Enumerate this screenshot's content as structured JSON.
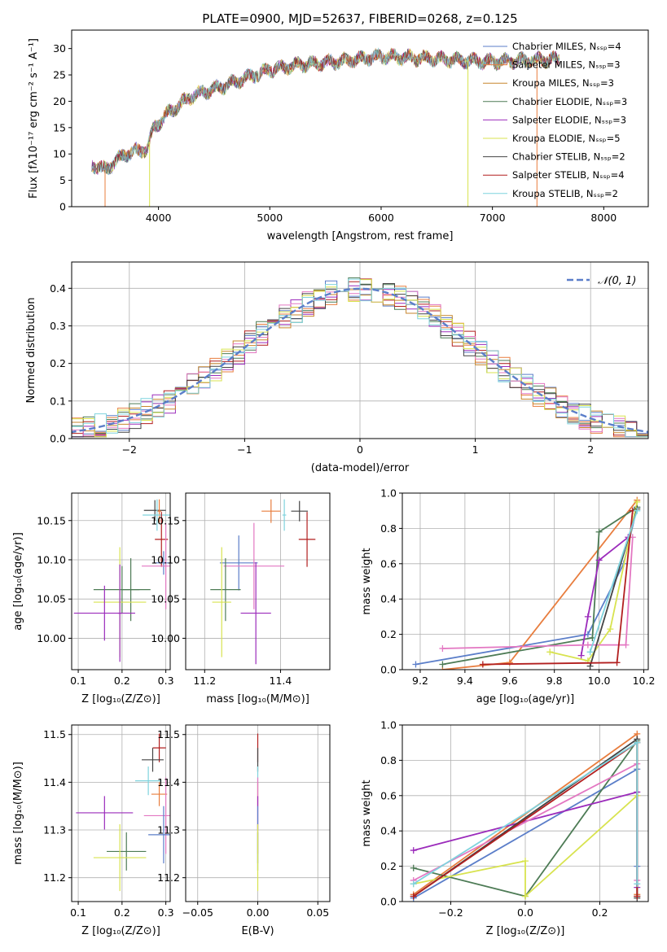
{
  "figure": {
    "title": "PLATE=0900, MJD=52637, FIBERID=0268, z=0.125"
  },
  "chart_data": [
    {
      "id": "spectrum",
      "type": "line",
      "xlabel": "wavelength [Angstrom, rest frame]",
      "ylabel": "Flux [fλ10⁻¹⁷ erg cm⁻² s⁻¹ A⁻¹]",
      "xlim": [
        3220,
        8400
      ],
      "ylim": [
        0,
        33.5
      ],
      "xticks": [
        4000,
        5000,
        6000,
        7000,
        8000
      ],
      "yticks": [
        0,
        5,
        10,
        15,
        20,
        25,
        30
      ],
      "grid": false,
      "legend_position": "right",
      "series": [
        {
          "name": "Chabrier MILES, Nₛₛₚ=4",
          "color": "#5b7ec9",
          "x_range": [
            3400,
            7600
          ]
        },
        {
          "name": "Salpeter MILES, Nₛₛₚ=3",
          "color": "#e87d3e",
          "x_range": [
            3400,
            7600
          ]
        },
        {
          "name": "Kroupa MILES, Nₛₛₚ=3",
          "color": "#c7862d",
          "x_range": [
            3400,
            7600
          ]
        },
        {
          "name": "Chabrier ELODIE, Nₛₛₚ=3",
          "color": "#4d7b55",
          "x_range": [
            3400,
            7600
          ]
        },
        {
          "name": "Salpeter ELODIE, Nₛₛₚ=3",
          "color": "#9b2bbb",
          "x_range": [
            3400,
            7600
          ]
        },
        {
          "name": "Kroupa ELODIE, Nₛₛₚ=5",
          "color": "#d8e34f",
          "x_range": [
            3400,
            7600
          ]
        },
        {
          "name": "Chabrier STELIB, Nₛₛₚ=2",
          "color": "#444444",
          "x_range": [
            3400,
            7600
          ]
        },
        {
          "name": "Salpeter STELIB, Nₛₛₚ=4",
          "color": "#b21f1f",
          "x_range": [
            3400,
            7600
          ]
        },
        {
          "name": "Kroupa STELIB, Nₛₛₚ=2",
          "color": "#7fd3dd",
          "x_range": [
            3400,
            7600
          ]
        }
      ],
      "continuum": {
        "x": [
          3400,
          3520,
          3700,
          3900,
          3960,
          4100,
          4300,
          4600,
          5000,
          5300,
          5600,
          6000,
          6500,
          7000,
          7600
        ],
        "y": [
          8,
          7,
          10,
          11,
          15,
          18,
          21,
          23,
          26,
          27,
          27.5,
          28.5,
          28,
          27.5,
          28
        ]
      },
      "spikes": [
        {
          "x": 3520,
          "color": "#e87d3e"
        },
        {
          "x": 3920,
          "color": "#d8e34f"
        },
        {
          "x": 6780,
          "color": "#d8e34f"
        },
        {
          "x": 7400,
          "color": "#e87d3e"
        }
      ]
    },
    {
      "id": "residuals",
      "type": "line",
      "xlabel": "(data-model)/error",
      "ylabel": "Normed distribution",
      "xlim": [
        -2.5,
        2.5
      ],
      "ylim": [
        0,
        0.47
      ],
      "xticks": [
        -2,
        -1,
        0,
        1,
        2
      ],
      "yticks": [
        0.0,
        0.1,
        0.2,
        0.3,
        0.4
      ],
      "grid": true,
      "legend_position": "top-right",
      "legend": [
        {
          "name": "𝒩(0, 1)",
          "color": "#5b7ec9",
          "dashed": true
        }
      ],
      "bin_width": 0.1,
      "hist_colors": [
        "#5b7ec9",
        "#e87d3e",
        "#4d7b55",
        "#b21f1f",
        "#9b2bbb",
        "#c7862d",
        "#e377c2",
        "#444444",
        "#d8e34f",
        "#7fd3dd"
      ]
    },
    {
      "id": "age-vs-Z",
      "type": "scatter",
      "xlabel": "Z [log₁₀(Z/Z⊙)]",
      "ylabel": "age  [log₁₀(age/yr)]",
      "xlim": [
        0.085,
        0.31
      ],
      "ylim": [
        9.96,
        10.185
      ],
      "xticks": [
        0.1,
        0.2,
        0.3
      ],
      "yticks": [
        10.0,
        10.05,
        10.1,
        10.15
      ],
      "grid": true,
      "points": [
        {
          "x": 0.275,
          "y": 10.163,
          "xerr": 0.025,
          "yerr": 0.013,
          "color": "#444444"
        },
        {
          "x": 0.285,
          "y": 10.162,
          "xerr": 0.005,
          "yerr": 0.015,
          "color": "#e87d3e"
        },
        {
          "x": 0.28,
          "y": 10.157,
          "xerr": 0.033,
          "yerr": 0.02,
          "color": "#7fd3dd"
        },
        {
          "x": 0.29,
          "y": 10.126,
          "xerr": 0.015,
          "yerr": 0.035,
          "color": "#b21f1f"
        },
        {
          "x": 0.295,
          "y": 10.096,
          "xerr": 0.022,
          "yerr": 0.015,
          "color": "#5b7ec9"
        },
        {
          "x": 0.3,
          "y": 10.092,
          "xerr": 0.055,
          "yerr": 0.055,
          "color": "#e377c2"
        },
        {
          "x": 0.2,
          "y": 10.062,
          "xerr": 0.065,
          "yerr": 0.03,
          "color": "#4d7b55"
        },
        {
          "x": 0.22,
          "y": 10.062,
          "xerr": 0.02,
          "yerr": 0.04,
          "color": "#4d7b55"
        },
        {
          "x": 0.195,
          "y": 10.046,
          "xerr": 0.06,
          "yerr": 0.07,
          "color": "#d8e34f"
        },
        {
          "x": 0.16,
          "y": 10.032,
          "xerr": 0.07,
          "yerr": 0.035,
          "color": "#9b2bbb"
        },
        {
          "x": 0.195,
          "y": 10.032,
          "xerr": 0.005,
          "yerr": 0.062,
          "color": "#9b2bbb"
        }
      ]
    },
    {
      "id": "age-vs-mass",
      "type": "scatter",
      "xlabel": "mass [log₁₀(M/M⊙)]",
      "ylabel": "",
      "xlim": [
        11.15,
        11.53
      ],
      "ylim": [
        9.96,
        10.185
      ],
      "xticks": [
        11.2,
        11.4
      ],
      "yticks": [
        10.0,
        10.05,
        10.1,
        10.15
      ],
      "grid": true,
      "points": [
        {
          "x": 11.45,
          "y": 10.162,
          "xerr": 0.022,
          "yerr": 0.013,
          "color": "#444444"
        },
        {
          "x": 11.375,
          "y": 10.162,
          "xerr": 0.025,
          "yerr": 0.015,
          "color": "#e87d3e"
        },
        {
          "x": 11.41,
          "y": 10.157,
          "xerr": 0.005,
          "yerr": 0.02,
          "color": "#7fd3dd"
        },
        {
          "x": 11.47,
          "y": 10.126,
          "xerr": 0.022,
          "yerr": 0.035,
          "color": "#b21f1f"
        },
        {
          "x": 11.29,
          "y": 10.096,
          "xerr": 0.05,
          "yerr": 0.035,
          "color": "#5b7ec9"
        },
        {
          "x": 11.33,
          "y": 10.092,
          "xerr": 0.08,
          "yerr": 0.055,
          "color": "#e377c2"
        },
        {
          "x": 11.255,
          "y": 10.062,
          "xerr": 0.04,
          "yerr": 0.04,
          "color": "#4d7b55"
        },
        {
          "x": 11.245,
          "y": 10.046,
          "xerr": 0.025,
          "yerr": 0.07,
          "color": "#d8e34f"
        },
        {
          "x": 11.335,
          "y": 10.032,
          "xerr": 0.04,
          "yerr": 0.065,
          "color": "#9b2bbb"
        }
      ]
    },
    {
      "id": "massweight-vs-age",
      "type": "line",
      "xlabel": "age  [log₁₀(age/yr)]",
      "ylabel": "mass weight",
      "xlim": [
        9.12,
        10.22
      ],
      "ylim": [
        0,
        1.0
      ],
      "xticks": [
        9.2,
        9.4,
        9.6,
        9.8,
        10.0,
        10.2
      ],
      "yticks": [
        0.0,
        0.2,
        0.4,
        0.6,
        0.8,
        1.0
      ],
      "grid": true,
      "series": [
        {
          "color": "#5b7ec9",
          "x": [
            9.18,
            9.95,
            10.11,
            10.17
          ],
          "y": [
            0.03,
            0.2,
            0.6,
            0.92
          ]
        },
        {
          "color": "#e87d3e",
          "x": [
            9.3,
            9.6,
            10.17
          ],
          "y": [
            0.0,
            0.04,
            0.96
          ]
        },
        {
          "color": "#4d7b55",
          "x": [
            9.3,
            9.97,
            10.0,
            10.17
          ],
          "y": [
            0.03,
            0.18,
            0.78,
            0.92
          ]
        },
        {
          "color": "#9b2bbb",
          "x": [
            9.92,
            9.95,
            10.0,
            10.13
          ],
          "y": [
            0.08,
            0.3,
            0.62,
            0.75
          ]
        },
        {
          "color": "#d8e34f",
          "x": [
            9.78,
            9.95,
            10.05,
            10.17
          ],
          "y": [
            0.1,
            0.05,
            0.23,
            0.95
          ]
        },
        {
          "color": "#e377c2",
          "x": [
            9.3,
            9.95,
            10.12,
            10.15
          ],
          "y": [
            0.12,
            0.14,
            0.14,
            0.75
          ]
        },
        {
          "color": "#444444",
          "x": [
            9.96,
            10.17
          ],
          "y": [
            0.02,
            0.91
          ]
        },
        {
          "color": "#b21f1f",
          "x": [
            9.48,
            10.08,
            10.15
          ],
          "y": [
            0.03,
            0.04,
            0.9
          ]
        },
        {
          "color": "#7fd3dd",
          "x": [
            9.96,
            10.17
          ],
          "y": [
            0.1,
            0.9
          ]
        }
      ]
    },
    {
      "id": "mass-vs-Z",
      "type": "scatter",
      "xlabel": "Z [log₁₀(Z/Z⊙)]",
      "ylabel": "mass [log₁₀(M/M⊙)]",
      "xlim": [
        0.085,
        0.31
      ],
      "ylim": [
        11.15,
        11.52
      ],
      "xticks": [
        0.1,
        0.2,
        0.3
      ],
      "yticks": [
        11.2,
        11.3,
        11.4,
        11.5
      ],
      "grid": true,
      "points": [
        {
          "x": 0.285,
          "y": 11.472,
          "xerr": 0.015,
          "yerr": 0.03,
          "color": "#b21f1f"
        },
        {
          "x": 0.27,
          "y": 11.447,
          "xerr": 0.025,
          "yerr": 0.025,
          "color": "#444444"
        },
        {
          "x": 0.26,
          "y": 11.403,
          "xerr": 0.03,
          "yerr": 0.03,
          "color": "#7fd3dd"
        },
        {
          "x": 0.285,
          "y": 11.375,
          "xerr": 0.018,
          "yerr": 0.025,
          "color": "#e87d3e"
        },
        {
          "x": 0.3,
          "y": 11.33,
          "xerr": 0.05,
          "yerr": 0.08,
          "color": "#e377c2"
        },
        {
          "x": 0.16,
          "y": 11.336,
          "xerr": 0.065,
          "yerr": 0.035,
          "color": "#9b2bbb"
        },
        {
          "x": 0.295,
          "y": 11.29,
          "xerr": 0.035,
          "yerr": 0.06,
          "color": "#5b7ec9"
        },
        {
          "x": 0.21,
          "y": 11.255,
          "xerr": 0.045,
          "yerr": 0.04,
          "color": "#4d7b55"
        },
        {
          "x": 0.195,
          "y": 11.242,
          "xerr": 0.06,
          "yerr": 0.07,
          "color": "#d8e34f"
        }
      ]
    },
    {
      "id": "mass-vs-ebv",
      "type": "scatter",
      "xlabel": "E(B-V)",
      "ylabel": "",
      "xlim": [
        -0.06,
        0.06
      ],
      "ylim": [
        11.15,
        11.52
      ],
      "xticks": [
        -0.05,
        0.0,
        0.05
      ],
      "yticks": [
        11.2,
        11.3,
        11.4,
        11.5
      ],
      "grid": true,
      "points": [
        {
          "x": 0.0,
          "y": 11.472,
          "yerr": 0.03,
          "color": "#b21f1f"
        },
        {
          "x": 0.0,
          "y": 11.447,
          "yerr": 0.025,
          "color": "#444444"
        },
        {
          "x": 0.0,
          "y": 11.403,
          "yerr": 0.03,
          "color": "#7fd3dd"
        },
        {
          "x": 0.0,
          "y": 11.375,
          "yerr": 0.025,
          "color": "#e87d3e"
        },
        {
          "x": 0.0,
          "y": 11.33,
          "yerr": 0.08,
          "color": "#e377c2"
        },
        {
          "x": 0.0,
          "y": 11.336,
          "yerr": 0.035,
          "color": "#9b2bbb"
        },
        {
          "x": 0.0,
          "y": 11.29,
          "yerr": 0.06,
          "color": "#5b7ec9"
        },
        {
          "x": 0.0,
          "y": 11.255,
          "yerr": 0.04,
          "color": "#4d7b55"
        },
        {
          "x": 0.0,
          "y": 11.242,
          "yerr": 0.07,
          "color": "#d8e34f"
        }
      ]
    },
    {
      "id": "massweight-vs-Z",
      "type": "line",
      "xlabel": "Z [log₁₀(Z/Z⊙)]",
      "ylabel": "mass weight",
      "xlim": [
        -0.33,
        0.33
      ],
      "ylim": [
        0,
        1.0
      ],
      "xticks": [
        -0.2,
        0.0,
        0.2
      ],
      "yticks": [
        0.0,
        0.2,
        0.4,
        0.6,
        0.8,
        1.0
      ],
      "grid": true,
      "series": [
        {
          "color": "#5b7ec9",
          "x": [
            -0.3,
            0.3,
            0.3
          ],
          "y": [
            0.02,
            0.75,
            0.2
          ]
        },
        {
          "color": "#e87d3e",
          "x": [
            -0.3,
            0.3,
            0.3
          ],
          "y": [
            0.04,
            0.95,
            0.04
          ]
        },
        {
          "color": "#4d7b55",
          "x": [
            -0.3,
            0.0,
            0.3,
            0.3
          ],
          "y": [
            0.19,
            0.03,
            0.91,
            0.03
          ]
        },
        {
          "color": "#9b2bbb",
          "x": [
            -0.3,
            0.3,
            0.3
          ],
          "y": [
            0.29,
            0.62,
            0.08
          ]
        },
        {
          "color": "#d8e34f",
          "x": [
            -0.3,
            0.0,
            0.0,
            0.3
          ],
          "y": [
            0.1,
            0.23,
            0.03,
            0.6
          ]
        },
        {
          "color": "#e377c2",
          "x": [
            -0.3,
            0.3,
            0.3
          ],
          "y": [
            0.12,
            0.78,
            0.12
          ]
        },
        {
          "color": "#444444",
          "x": [
            -0.3,
            0.3,
            0.3
          ],
          "y": [
            0.03,
            0.92,
            0.02
          ]
        },
        {
          "color": "#b21f1f",
          "x": [
            -0.3,
            0.3,
            0.3
          ],
          "y": [
            0.03,
            0.9,
            0.03
          ]
        },
        {
          "color": "#7fd3dd",
          "x": [
            -0.3,
            0.3,
            0.3
          ],
          "y": [
            0.1,
            0.9,
            0.1
          ]
        }
      ]
    }
  ]
}
